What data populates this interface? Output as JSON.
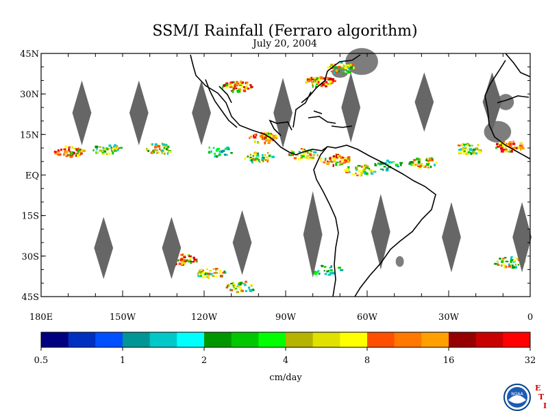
{
  "title": "SSM/I Rainfall (Ferraro algorithm)",
  "subtitle": "July 20, 2004",
  "map": {
    "lon_range": [
      -180,
      0
    ],
    "lat_range": [
      -45,
      45
    ],
    "lat_tick_labels": [
      {
        "lat": 45,
        "label": "45N"
      },
      {
        "lat": 30,
        "label": "30N"
      },
      {
        "lat": 15,
        "label": "15N"
      },
      {
        "lat": 0,
        "label": "EQ"
      },
      {
        "lat": -15,
        "label": "15S"
      },
      {
        "lat": -30,
        "label": "30S"
      },
      {
        "lat": -45,
        "label": "45S"
      }
    ],
    "lon_tick_labels": [
      {
        "lon": -180,
        "label": "180E"
      },
      {
        "lon": -150,
        "label": "150W"
      },
      {
        "lon": -120,
        "label": "120W"
      },
      {
        "lon": -90,
        "label": "90W"
      },
      {
        "lon": -60,
        "label": "60W"
      },
      {
        "lon": -30,
        "label": "30W"
      },
      {
        "lon": 0,
        "label": "0"
      }
    ],
    "swath_gaps": {
      "color": "#666666",
      "north": [
        {
          "lon": -165,
          "lat": 23,
          "half_width_deg": 3.5,
          "half_height_deg": 12
        },
        {
          "lon": -144,
          "lat": 23,
          "half_width_deg": 3.5,
          "half_height_deg": 12
        },
        {
          "lon": -121,
          "lat": 23,
          "half_width_deg": 3.5,
          "half_height_deg": 12
        },
        {
          "lon": -91,
          "lat": 23,
          "half_width_deg": 3.5,
          "half_height_deg": 13
        },
        {
          "lon": -66,
          "lat": 25,
          "half_width_deg": 3.5,
          "half_height_deg": 13
        },
        {
          "lon": -39,
          "lat": 27,
          "half_width_deg": 3.5,
          "half_height_deg": 11
        },
        {
          "lon": -14,
          "lat": 27,
          "half_width_deg": 3.5,
          "half_height_deg": 11
        }
      ],
      "south": [
        {
          "lon": -157,
          "lat": -27,
          "half_width_deg": 3.5,
          "half_height_deg": 11.5
        },
        {
          "lon": -132,
          "lat": -27,
          "half_width_deg": 3.5,
          "half_height_deg": 11.5
        },
        {
          "lon": -106,
          "lat": -25,
          "half_width_deg": 3.5,
          "half_height_deg": 12
        },
        {
          "lon": -80,
          "lat": -22,
          "half_width_deg": 3.5,
          "half_height_deg": 16
        },
        {
          "lon": -55,
          "lat": -21,
          "half_width_deg": 3.5,
          "half_height_deg": 14
        },
        {
          "lon": -29,
          "lat": -23,
          "half_width_deg": 3.5,
          "half_height_deg": 13
        },
        {
          "lon": -3,
          "lat": -23,
          "half_width_deg": 3.5,
          "half_height_deg": 13
        }
      ]
    },
    "rain_areas": [
      {
        "lon": -170,
        "lat": 9,
        "intensity": "heavy"
      },
      {
        "lon": -156,
        "lat": 10,
        "intensity": "moderate"
      },
      {
        "lon": -137,
        "lat": 10,
        "intensity": "moderate"
      },
      {
        "lon": -115,
        "lat": 9,
        "intensity": "light"
      },
      {
        "lon": -98,
        "lat": 14,
        "intensity": "heavy"
      },
      {
        "lon": -100,
        "lat": 7,
        "intensity": "moderate"
      },
      {
        "lon": -84,
        "lat": 8,
        "intensity": "moderate"
      },
      {
        "lon": -72,
        "lat": 6,
        "intensity": "heavy"
      },
      {
        "lon": -63,
        "lat": 2,
        "intensity": "moderate"
      },
      {
        "lon": -52,
        "lat": 4,
        "intensity": "light"
      },
      {
        "lon": -40,
        "lat": 5,
        "intensity": "moderate"
      },
      {
        "lon": -23,
        "lat": 10,
        "intensity": "moderate"
      },
      {
        "lon": -8,
        "lat": 11,
        "intensity": "heavy"
      },
      {
        "lon": -108,
        "lat": 33,
        "intensity": "heavy"
      },
      {
        "lon": -78,
        "lat": 35,
        "intensity": "heavy"
      },
      {
        "lon": -70,
        "lat": 40,
        "intensity": "moderate"
      },
      {
        "lon": -128,
        "lat": -31,
        "intensity": "heavy"
      },
      {
        "lon": -118,
        "lat": -36,
        "intensity": "moderate"
      },
      {
        "lon": -107,
        "lat": -41,
        "intensity": "moderate"
      },
      {
        "lon": -75,
        "lat": -35,
        "intensity": "light"
      },
      {
        "lon": -8,
        "lat": -32,
        "intensity": "moderate"
      }
    ],
    "land_no_data_color": "#666666"
  },
  "colorbar": {
    "colors": [
      "#000080",
      "#0030c0",
      "#0050ff",
      "#009696",
      "#00c8c8",
      "#00ffff",
      "#009600",
      "#00c800",
      "#00ff00",
      "#b4b400",
      "#e1e100",
      "#ffff00",
      "#ff5000",
      "#ff7800",
      "#ffa000",
      "#960000",
      "#c80000",
      "#ff0000"
    ],
    "tick_labels": [
      "0.5",
      "1",
      "2",
      "4",
      "8",
      "16",
      "32"
    ],
    "units": "cm/day"
  },
  "logo": {
    "text": "NOAA",
    "letters": [
      "E",
      "T",
      "I"
    ]
  }
}
